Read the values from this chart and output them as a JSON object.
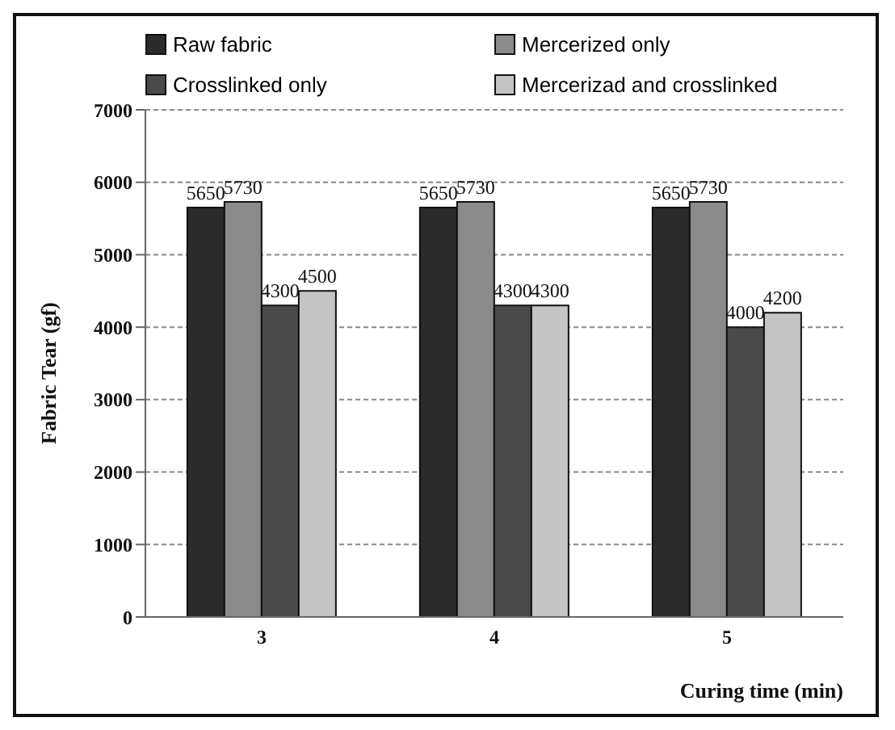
{
  "chart_data": {
    "type": "bar",
    "xlabel": "Curing time (min)",
    "ylabel": "Fabric Tear (gf)",
    "categories": [
      "3",
      "4",
      "5"
    ],
    "series": [
      {
        "name": "Raw fabric",
        "color": "#2b2b2b",
        "values": [
          5650,
          5650,
          5650
        ]
      },
      {
        "name": "Mercerized only",
        "color": "#8a8a8a",
        "values": [
          5730,
          5730,
          5730
        ]
      },
      {
        "name": "Crosslinked only",
        "color": "#4a4a4a",
        "values": [
          4300,
          4300,
          4000
        ]
      },
      {
        "name": "Mercerizad and crosslinked",
        "color": "#c4c4c4",
        "values": [
          4500,
          4300,
          4200
        ]
      }
    ],
    "ylim": [
      0,
      7000
    ],
    "yticks": [
      0,
      1000,
      2000,
      3000,
      4000,
      5000,
      6000,
      7000
    ],
    "grid": "y",
    "legend": "top",
    "data_labels": true
  }
}
